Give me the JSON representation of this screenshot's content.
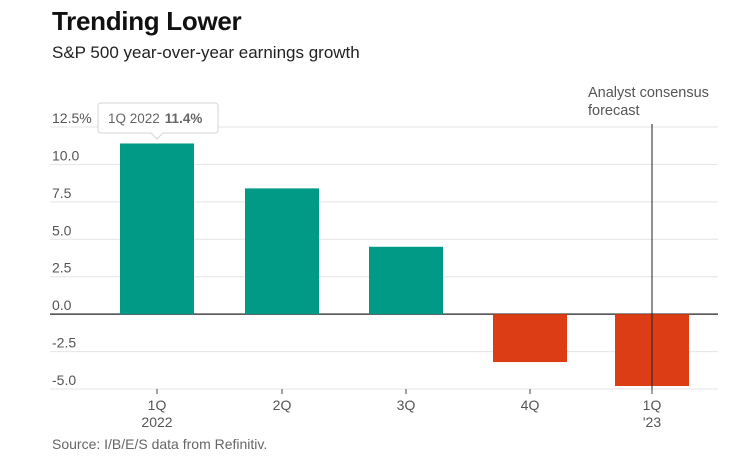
{
  "header": {
    "title": "Trending Lower",
    "subtitle": "S&P 500 year-over-year earnings growth"
  },
  "footer": {
    "source": "Source: I/B/E/S data from Refinitiv."
  },
  "chart_data": {
    "type": "bar",
    "categories": [
      "1Q 2022",
      "2Q",
      "3Q",
      "4Q",
      "1Q '23"
    ],
    "category_lines": [
      [
        "1Q",
        "2022"
      ],
      [
        "2Q"
      ],
      [
        "3Q"
      ],
      [
        "4Q"
      ],
      [
        "1Q",
        "'23"
      ]
    ],
    "values": [
      11.4,
      8.4,
      4.5,
      -3.2,
      -4.8
    ],
    "ylim": [
      -5,
      12.5
    ],
    "yticks": [
      12.5,
      10,
      7.5,
      5,
      2.5,
      0,
      -2.5,
      -5
    ],
    "ytick_labels": [
      "12.5%",
      "10.0",
      "7.5",
      "5.0",
      "2.5",
      "0.0",
      "-2.5",
      "-5.0"
    ],
    "colors": {
      "positive": "#009a87",
      "negative": "#dc3d14",
      "grid": "#e4e4e4",
      "axis": "#222222"
    },
    "annotation": {
      "lines": [
        "Analyst consensus",
        "forecast"
      ],
      "category_index": 4
    },
    "tooltip": {
      "label": "1Q 2022",
      "value": "11.4%",
      "category_index": 0
    },
    "grid": true
  }
}
